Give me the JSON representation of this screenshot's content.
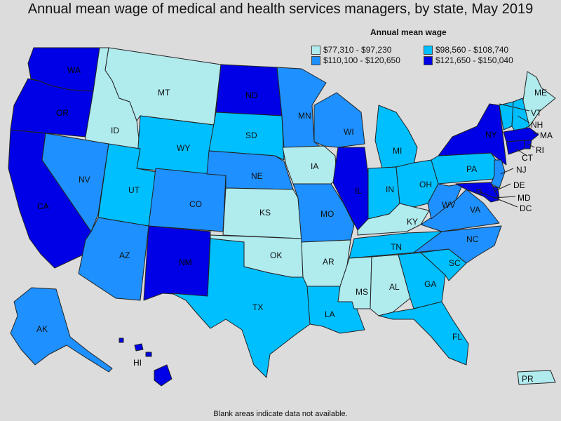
{
  "title": "Annual mean wage of medical and health services managers, by state, May 2019",
  "legend": {
    "title": "Annual mean wage",
    "items": [
      {
        "label": "$77,310 - $97,230",
        "color": "#b0ebee"
      },
      {
        "label": "$98,560 - $108,740",
        "color": "#00bfff"
      },
      {
        "label": "$110,100 - $120,650",
        "color": "#1e90ff"
      },
      {
        "label": "$121,650 - $150,040",
        "color": "#0000e6"
      }
    ]
  },
  "footnote": "Blank areas indicate data not available.",
  "states": [
    {
      "code": "WA",
      "tier": 3
    },
    {
      "code": "OR",
      "tier": 3
    },
    {
      "code": "CA",
      "tier": 3
    },
    {
      "code": "ID",
      "tier": 0
    },
    {
      "code": "NV",
      "tier": 2
    },
    {
      "code": "MT",
      "tier": 0
    },
    {
      "code": "WY",
      "tier": 1
    },
    {
      "code": "UT",
      "tier": 1
    },
    {
      "code": "AZ",
      "tier": 2
    },
    {
      "code": "CO",
      "tier": 2
    },
    {
      "code": "NM",
      "tier": 3
    },
    {
      "code": "ND",
      "tier": 3
    },
    {
      "code": "SD",
      "tier": 1
    },
    {
      "code": "NE",
      "tier": 2
    },
    {
      "code": "KS",
      "tier": 0
    },
    {
      "code": "OK",
      "tier": 0
    },
    {
      "code": "TX",
      "tier": 1
    },
    {
      "code": "MN",
      "tier": 2
    },
    {
      "code": "IA",
      "tier": 0
    },
    {
      "code": "MO",
      "tier": 2
    },
    {
      "code": "AR",
      "tier": 0
    },
    {
      "code": "LA",
      "tier": 1
    },
    {
      "code": "WI",
      "tier": 2
    },
    {
      "code": "IL",
      "tier": 3
    },
    {
      "code": "MI",
      "tier": 1
    },
    {
      "code": "IN",
      "tier": 1
    },
    {
      "code": "OH",
      "tier": 1
    },
    {
      "code": "KY",
      "tier": 0
    },
    {
      "code": "TN",
      "tier": 1
    },
    {
      "code": "MS",
      "tier": 0
    },
    {
      "code": "AL",
      "tier": 0
    },
    {
      "code": "GA",
      "tier": 1
    },
    {
      "code": "FL",
      "tier": 1
    },
    {
      "code": "SC",
      "tier": 1
    },
    {
      "code": "NC",
      "tier": 2
    },
    {
      "code": "VA",
      "tier": 2
    },
    {
      "code": "WV",
      "tier": 2
    },
    {
      "code": "PA",
      "tier": 1
    },
    {
      "code": "NY",
      "tier": 3
    },
    {
      "code": "ME",
      "tier": 0
    },
    {
      "code": "VT",
      "tier": 1
    },
    {
      "code": "NH",
      "tier": 1
    },
    {
      "code": "MA",
      "tier": 3
    },
    {
      "code": "RI",
      "tier": 3
    },
    {
      "code": "CT",
      "tier": 3
    },
    {
      "code": "NJ",
      "tier": 2
    },
    {
      "code": "DE",
      "tier": 3
    },
    {
      "code": "MD",
      "tier": 3
    },
    {
      "code": "DC",
      "tier": 3
    },
    {
      "code": "AK",
      "tier": 2
    },
    {
      "code": "HI",
      "tier": 3
    },
    {
      "code": "PR",
      "tier": 0
    }
  ]
}
